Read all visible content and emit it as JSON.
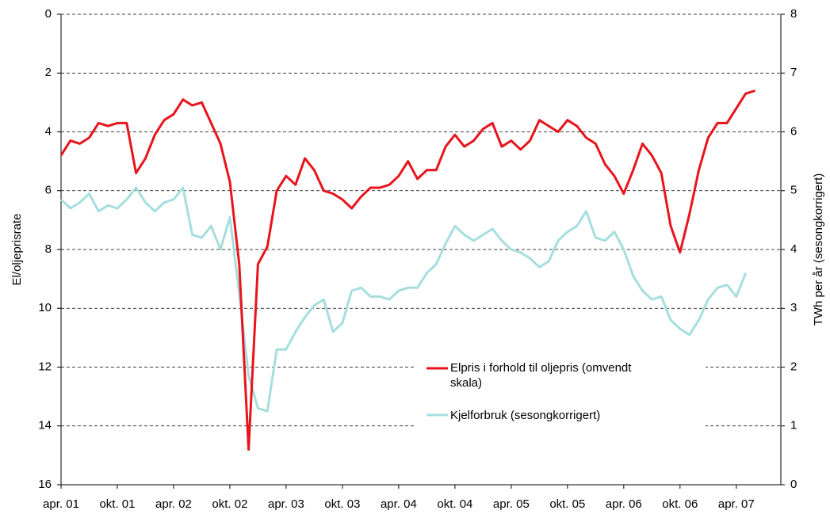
{
  "chart_data": {
    "type": "line",
    "categories": [
      "apr. 01",
      null,
      null,
      null,
      null,
      null,
      "okt. 01",
      null,
      null,
      null,
      null,
      null,
      "apr. 02",
      null,
      null,
      null,
      null,
      null,
      "okt. 02",
      null,
      null,
      null,
      null,
      null,
      "apr. 03",
      null,
      null,
      null,
      null,
      null,
      "okt. 03",
      null,
      null,
      null,
      null,
      null,
      "apr. 04",
      null,
      null,
      null,
      null,
      null,
      "okt. 04",
      null,
      null,
      null,
      null,
      null,
      "apr. 05",
      null,
      null,
      null,
      null,
      null,
      "okt. 05",
      null,
      null,
      null,
      null,
      null,
      "apr. 06",
      null,
      null,
      null,
      null,
      null,
      "okt. 06",
      null,
      null,
      null,
      null,
      null,
      "apr. 07",
      null,
      null
    ],
    "series": [
      {
        "name": "Elpris i forhold til oljepris (omvendt skala)",
        "color": "#e8141c",
        "values": [
          4.8,
          4.3,
          4.4,
          4.2,
          3.7,
          3.8,
          3.7,
          3.7,
          5.4,
          4.9,
          4.1,
          3.6,
          3.4,
          2.9,
          3.1,
          3.0,
          3.7,
          4.4,
          5.7,
          8.5,
          14.8,
          8.5,
          7.9,
          6.0,
          5.5,
          5.8,
          4.9,
          5.3,
          6.0,
          6.1,
          6.3,
          6.6,
          6.2,
          5.9,
          5.9,
          5.8,
          5.5,
          5.0,
          5.6,
          5.3,
          5.3,
          4.5,
          4.1,
          4.5,
          4.3,
          3.9,
          3.7,
          4.5,
          4.3,
          4.6,
          4.3,
          3.6,
          3.8,
          4.0,
          3.6,
          3.8,
          4.2,
          4.4,
          5.1,
          5.5,
          6.1,
          5.3,
          4.4,
          4.8,
          5.4,
          7.2,
          8.1,
          6.8,
          5.3,
          4.2,
          3.7,
          3.7,
          3.2,
          2.7,
          2.6
        ]
      },
      {
        "name": "Kjelforbruk (sesongkorrigert)",
        "color": "#a6dede",
        "axis": "y2",
        "values": [
          4.85,
          4.7,
          4.8,
          4.95,
          4.65,
          4.75,
          4.7,
          4.85,
          5.05,
          4.8,
          4.65,
          4.8,
          4.85,
          5.05,
          4.25,
          4.2,
          4.4,
          4.0,
          4.55,
          3.25,
          1.85,
          1.3,
          1.25,
          2.3,
          2.3,
          2.6,
          2.85,
          3.05,
          3.15,
          2.6,
          2.75,
          3.3,
          3.35,
          3.2,
          3.2,
          3.15,
          3.3,
          3.35,
          3.35,
          3.6,
          3.75,
          4.1,
          4.4,
          4.25,
          4.15,
          4.25,
          4.35,
          4.15,
          4.0,
          3.95,
          3.85,
          3.7,
          3.8,
          4.15,
          4.3,
          4.4,
          4.65,
          4.2,
          4.15,
          4.3,
          4.0,
          3.55,
          3.3,
          3.15,
          3.2,
          2.8,
          2.65,
          2.55,
          2.8,
          3.15,
          3.35,
          3.4,
          3.2,
          3.6,
          null
        ]
      }
    ],
    "ylabel": "El/oljeprisrate",
    "y2label": "TWh per år (sesongkorrigert)",
    "ylim": [
      0,
      16
    ],
    "yticks": [
      0,
      2,
      4,
      6,
      8,
      10,
      12,
      14,
      16
    ],
    "yinvert": true,
    "y2lim": [
      0,
      8
    ],
    "y2ticks": [
      0,
      1,
      2,
      3,
      4,
      5,
      6,
      7,
      8
    ],
    "grid": true,
    "legend": "lower right"
  }
}
